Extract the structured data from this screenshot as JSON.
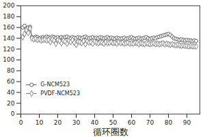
{
  "chart_data": {
    "type": "line",
    "x_label": "循环圈数",
    "x": [
      1,
      2,
      3,
      4,
      5,
      6,
      7,
      8,
      9,
      10,
      11,
      12,
      13,
      14,
      15,
      16,
      17,
      18,
      19,
      20,
      21,
      22,
      23,
      24,
      25,
      26,
      27,
      28,
      29,
      30,
      31,
      32,
      33,
      34,
      35,
      36,
      37,
      38,
      39,
      40,
      41,
      42,
      43,
      44,
      45,
      46,
      47,
      48,
      49,
      50,
      51,
      52,
      53,
      54,
      55,
      56,
      57,
      58,
      59,
      60,
      61,
      62,
      63,
      64,
      65,
      66,
      67,
      68,
      69,
      70,
      71,
      72,
      73,
      74,
      75,
      76,
      77,
      78,
      79,
      80,
      81,
      82,
      83,
      84,
      85,
      86,
      87,
      88,
      89,
      90,
      91,
      92,
      93,
      94,
      95
    ],
    "series": [
      {
        "name": "G-NCM523",
        "color": "#555555",
        "marker": "circle",
        "line_style": "solid",
        "values": [
          160,
          163,
          158,
          160,
          161,
          142,
          141,
          143,
          142,
          140,
          141,
          142,
          141,
          143,
          142,
          141,
          143,
          142,
          141,
          142,
          140,
          142,
          141,
          142,
          143,
          141,
          140,
          142,
          141,
          140,
          142,
          141,
          140,
          142,
          143,
          141,
          140,
          141,
          142,
          140,
          141,
          140,
          142,
          141,
          140,
          141,
          142,
          140,
          141,
          140,
          139,
          141,
          140,
          139,
          140,
          141,
          139,
          140,
          141,
          142,
          140,
          139,
          140,
          141,
          139,
          140,
          141,
          142,
          140,
          139,
          140,
          141,
          140,
          142,
          143,
          144,
          145,
          146,
          147,
          148,
          146,
          143,
          140,
          139,
          138,
          137,
          138,
          137,
          136,
          137,
          136,
          136,
          135,
          136,
          135
        ]
      },
      {
        "name": "PVDF-NCM523",
        "color": "#777777",
        "marker": "diamond",
        "line_style": "solid",
        "values": [
          142,
          148,
          155,
          150,
          158,
          140,
          138,
          139,
          137,
          138,
          136,
          137,
          138,
          136,
          137,
          133,
          138,
          136,
          130,
          137,
          135,
          131,
          136,
          134,
          130,
          135,
          133,
          137,
          132,
          128,
          134,
          133,
          131,
          135,
          129,
          134,
          132,
          133,
          130,
          134,
          132,
          131,
          133,
          132,
          130,
          133,
          131,
          132,
          133,
          131,
          132,
          130,
          133,
          131,
          132,
          130,
          131,
          132,
          130,
          131,
          130,
          132,
          131,
          129,
          131,
          130,
          129,
          131,
          130,
          129,
          130,
          131,
          129,
          130,
          129,
          130,
          131,
          129,
          130,
          129,
          128,
          129,
          128,
          127,
          128,
          127,
          126,
          127,
          126,
          126,
          125,
          126,
          125,
          125,
          125
        ]
      }
    ],
    "xlim": [
      0,
      97
    ],
    "xticks": [
      0,
      10,
      20,
      30,
      40,
      50,
      60,
      70,
      80,
      90
    ],
    "ylim": [
      0,
      200
    ],
    "yticks": [
      0,
      20,
      40,
      60,
      80,
      100,
      120,
      140,
      160,
      180,
      200
    ],
    "grid": false,
    "legend": "bottom-left"
  }
}
